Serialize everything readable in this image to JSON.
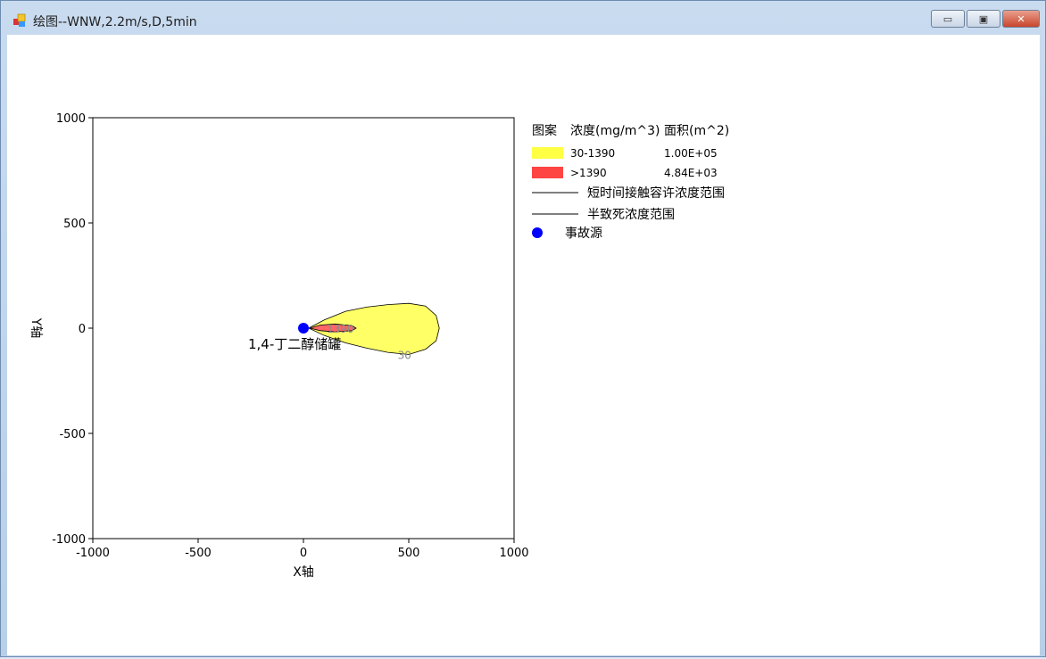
{
  "window": {
    "title": "绘图--WNW,2.2m/s,D,5min",
    "minimize": "▭",
    "maximize": "▣",
    "close": "✕"
  },
  "chart_data": {
    "type": "contour",
    "xlabel": "X轴",
    "ylabel": "Y轴",
    "xlim": [
      -1000,
      1000
    ],
    "ylim": [
      -1000,
      1000
    ],
    "xticks": [
      "-1000",
      "-500",
      "0",
      "500",
      "1000"
    ],
    "yticks": [
      "1000",
      "500",
      "0",
      "-500",
      "-1000"
    ],
    "grid": false,
    "legend_position": "right",
    "source": {
      "x": 0,
      "y": 0,
      "label": "1,4-丁二醇储罐",
      "color": "#0000ff"
    },
    "contours": [
      {
        "level_label": "30",
        "label_at": [
          480,
          -125
        ],
        "color": "#ffff66",
        "points": [
          [
            25,
            0
          ],
          [
            100,
            40
          ],
          [
            200,
            80
          ],
          [
            300,
            100
          ],
          [
            400,
            112
          ],
          [
            500,
            118
          ],
          [
            580,
            105
          ],
          [
            630,
            60
          ],
          [
            645,
            0
          ],
          [
            630,
            -60
          ],
          [
            580,
            -100
          ],
          [
            500,
            -125
          ],
          [
            400,
            -115
          ],
          [
            300,
            -95
          ],
          [
            200,
            -70
          ],
          [
            100,
            -35
          ],
          [
            25,
            0
          ]
        ]
      },
      {
        "level_label": "1390",
        "label_at": [
          175,
          0
        ],
        "color": "#ff6666",
        "points": [
          [
            30,
            0
          ],
          [
            80,
            15
          ],
          [
            150,
            20
          ],
          [
            230,
            12
          ],
          [
            250,
            0
          ],
          [
            230,
            -12
          ],
          [
            150,
            -18
          ],
          [
            80,
            -12
          ],
          [
            30,
            0
          ]
        ]
      }
    ],
    "legend": {
      "headers": [
        "图案",
        "浓度(mg/m^3)",
        "面积(m^2)"
      ],
      "rows": [
        {
          "range": "30-1390",
          "area": "1.00E+05",
          "color": "#ffff44"
        },
        {
          "range": ">1390",
          "area": "4.84E+03",
          "color": "#ff4444"
        }
      ],
      "lines": [
        "短时间接触容许浓度范围",
        "半致死浓度范围"
      ],
      "source_label": "事故源"
    }
  }
}
